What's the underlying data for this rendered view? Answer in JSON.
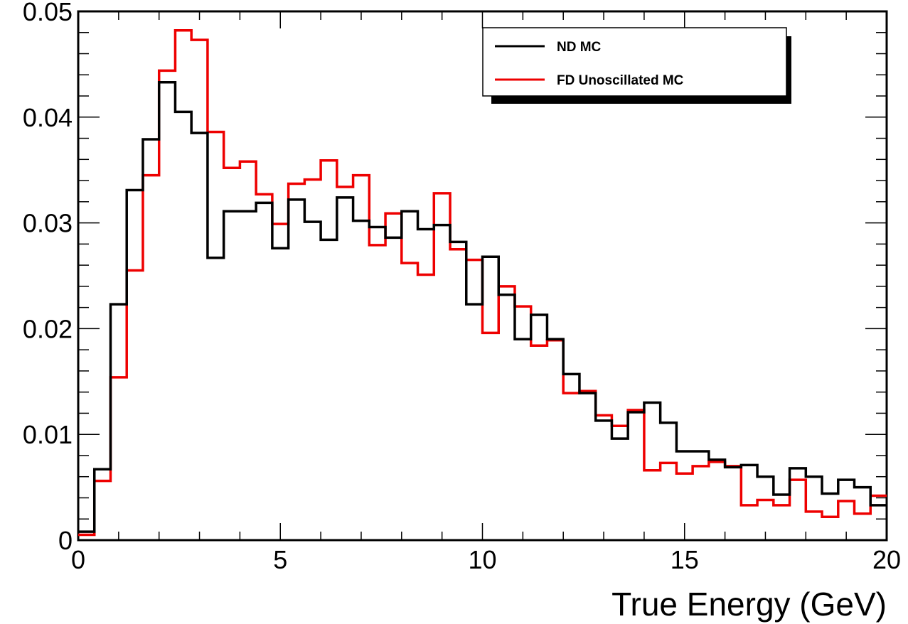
{
  "chart_data": {
    "type": "line",
    "title": "",
    "xlabel": "True Energy (GeV)",
    "ylabel": "",
    "xlim": [
      0,
      20
    ],
    "ylim": [
      0,
      0.05
    ],
    "bin_width": 0.4,
    "x_ticks": [
      0,
      5,
      10,
      15,
      20
    ],
    "x_tick_labels": [
      "0",
      "5",
      "10",
      "15",
      "20"
    ],
    "y_ticks": [
      0,
      0.01,
      0.02,
      0.03,
      0.04,
      0.05
    ],
    "y_tick_labels": [
      "0",
      "0.01",
      "0.02",
      "0.03",
      "0.04",
      "0.05"
    ],
    "grid": false,
    "legend_position": "top-right",
    "bin_edges": [
      0.0,
      0.4,
      0.8,
      1.2,
      1.6,
      2.0,
      2.4,
      2.8,
      3.2,
      3.6,
      4.0,
      4.4,
      4.8,
      5.2,
      5.6,
      6.0,
      6.4,
      6.8,
      7.2,
      7.6,
      8.0,
      8.4,
      8.8,
      9.2,
      9.6,
      10.0,
      10.4,
      10.8,
      11.2,
      11.6,
      12.0,
      12.4,
      12.8,
      13.2,
      13.6,
      14.0,
      14.4,
      14.8,
      15.2,
      15.6,
      16.0,
      16.4,
      16.8,
      17.2,
      17.6,
      18.0,
      18.4,
      18.8,
      19.2,
      19.6,
      20.0
    ],
    "series": [
      {
        "name": "ND MC",
        "color": "#000000",
        "values": [
          0.0008,
          0.0067,
          0.0223,
          0.0331,
          0.0379,
          0.0433,
          0.0405,
          0.0385,
          0.0267,
          0.0311,
          0.0311,
          0.0319,
          0.0276,
          0.0322,
          0.0301,
          0.0284,
          0.0324,
          0.0302,
          0.0296,
          0.0286,
          0.0311,
          0.0294,
          0.0298,
          0.0282,
          0.0223,
          0.0268,
          0.0232,
          0.019,
          0.0213,
          0.019,
          0.0157,
          0.0139,
          0.0113,
          0.0096,
          0.0121,
          0.013,
          0.0111,
          0.0084,
          0.0084,
          0.0076,
          0.0069,
          0.0071,
          0.006,
          0.0043,
          0.0068,
          0.006,
          0.0044,
          0.0057,
          0.005,
          0.0033
        ]
      },
      {
        "name": "FD Unoscillated MC",
        "color": "#ee0000",
        "values": [
          0.0005,
          0.0056,
          0.0154,
          0.0255,
          0.0345,
          0.0444,
          0.0482,
          0.0473,
          0.0386,
          0.0352,
          0.0358,
          0.0327,
          0.0299,
          0.0337,
          0.0341,
          0.0359,
          0.0334,
          0.0345,
          0.0279,
          0.0309,
          0.0262,
          0.0251,
          0.0328,
          0.0275,
          0.0265,
          0.0196,
          0.024,
          0.0221,
          0.0184,
          0.0189,
          0.0139,
          0.0141,
          0.0118,
          0.0108,
          0.0123,
          0.0066,
          0.0073,
          0.0063,
          0.007,
          0.0074,
          0.007,
          0.0033,
          0.0038,
          0.0033,
          0.0057,
          0.0027,
          0.0022,
          0.0037,
          0.0025,
          0.0042
        ]
      }
    ]
  }
}
